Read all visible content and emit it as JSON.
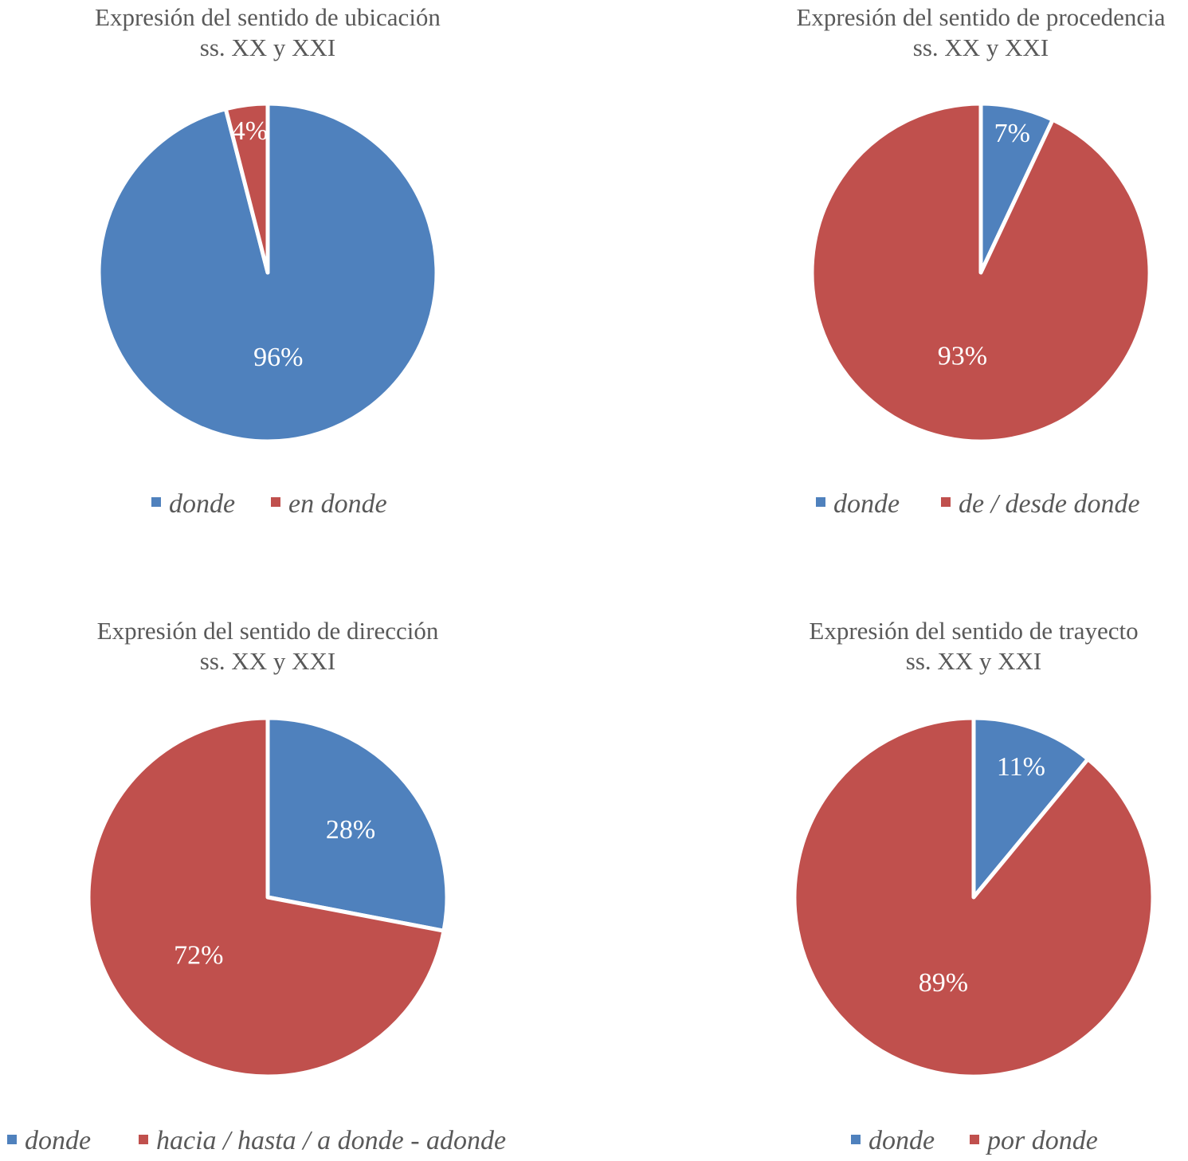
{
  "chart_data": [
    {
      "type": "pie",
      "title": "Expresión del sentido de ubicación",
      "subtitle": "ss. XX y XXI",
      "categories": [
        "donde",
        "en donde"
      ],
      "values": [
        96,
        4
      ],
      "labels": [
        "96%",
        "4%"
      ],
      "colors": [
        "#4f81bd",
        "#c0504d"
      ],
      "legend_position": "bottom"
    },
    {
      "type": "pie",
      "title": "Expresión del sentido de procedencia",
      "subtitle": "ss. XX y XXI",
      "categories": [
        "donde",
        "de / desde donde"
      ],
      "values": [
        7,
        93
      ],
      "labels": [
        "7%",
        "93%"
      ],
      "colors": [
        "#4f81bd",
        "#c0504d"
      ],
      "legend_position": "bottom"
    },
    {
      "type": "pie",
      "title": "Expresión del sentido de dirección",
      "subtitle": "ss. XX y XXI",
      "categories": [
        "donde",
        "hacia / hasta / a donde - adonde"
      ],
      "values": [
        28,
        72
      ],
      "labels": [
        "28%",
        "72%"
      ],
      "colors": [
        "#4f81bd",
        "#c0504d"
      ],
      "legend_position": "bottom"
    },
    {
      "type": "pie",
      "title": "Expresión del sentido de  trayecto",
      "subtitle": "ss. XX y XXI",
      "categories": [
        "donde",
        "por donde"
      ],
      "values": [
        11,
        89
      ],
      "labels": [
        "11%",
        "89%"
      ],
      "colors": [
        "#4f81bd",
        "#c0504d"
      ],
      "legend_position": "bottom"
    }
  ]
}
